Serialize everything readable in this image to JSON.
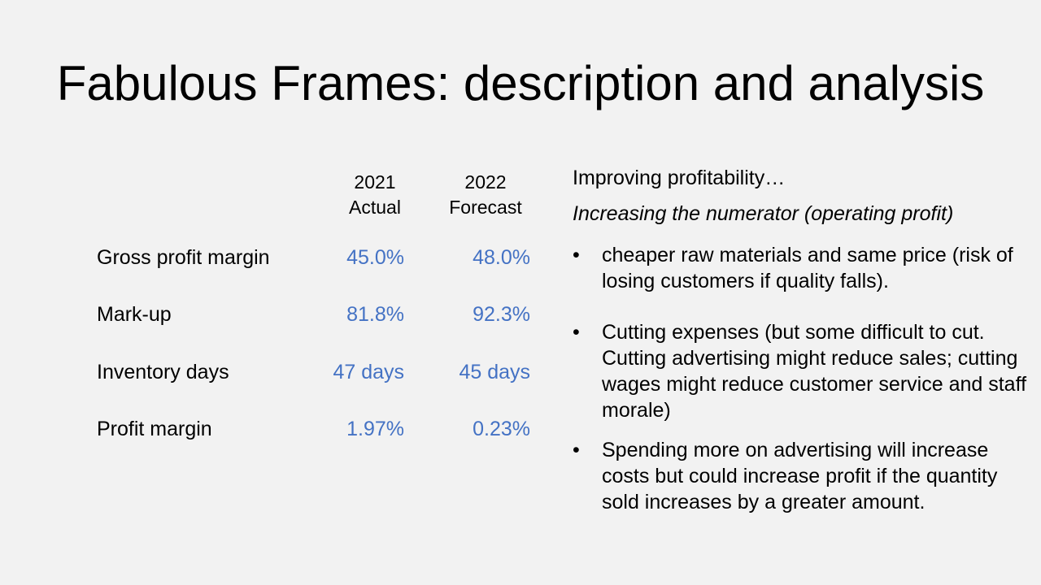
{
  "slide": {
    "title": "Fabulous Frames: description and analysis"
  },
  "table": {
    "columns": [
      {
        "year": "2021",
        "label": "Actual"
      },
      {
        "year": "2022",
        "label": "Forecast"
      }
    ],
    "rows": [
      {
        "label": "Gross profit margin",
        "values": [
          "45.0%",
          "48.0%"
        ]
      },
      {
        "label": "Mark-up",
        "values": [
          "81.8%",
          "92.3%"
        ]
      },
      {
        "label": "Inventory days",
        "values": [
          "47 days",
          "45 days"
        ]
      },
      {
        "label": "Profit margin",
        "values": [
          "1.97%",
          "0.23%"
        ]
      }
    ],
    "value_color": "#4472c4"
  },
  "analysis": {
    "heading": "Improving profitability…",
    "subheading": "Increasing the numerator (operating profit)",
    "bullet_glyph": "•",
    "bullets": [
      "cheaper raw materials and same price (risk of losing customers if quality falls).",
      "Cutting expenses (but some difficult to cut. Cutting advertising might reduce sales; cutting wages might reduce customer service and staff morale)",
      "Spending more on advertising will increase costs but could increase profit if the quantity sold increases by a greater amount."
    ]
  }
}
